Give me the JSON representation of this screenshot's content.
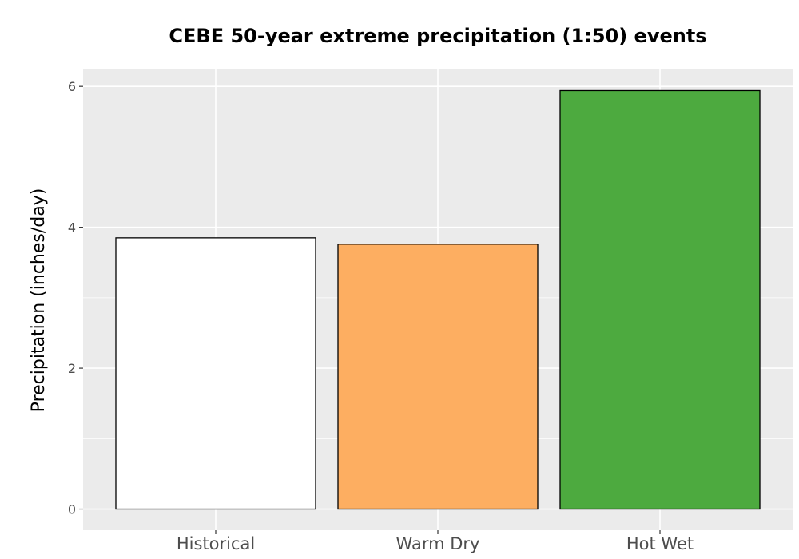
{
  "chart_data": {
    "type": "bar",
    "title": "CEBE 50-year extreme precipitation (1:50) events",
    "xlabel": "",
    "ylabel": "Precipitation (inches/day)",
    "categories": [
      "Historical",
      "Warm Dry",
      "Hot Wet"
    ],
    "values": [
      3.85,
      3.76,
      5.94
    ],
    "colors": [
      "#ffffff",
      "#fdae61",
      "#4daa3f"
    ],
    "bar_outline_color": "#000000",
    "ylim": [
      -0.3,
      6.24
    ],
    "yticks": [
      0,
      2,
      4,
      6
    ],
    "ytick_labels": [
      "0",
      "2",
      "4",
      "6"
    ],
    "grid": true,
    "panel_background": "#ebebeb",
    "grid_color": "#ffffff",
    "legend": "none"
  }
}
